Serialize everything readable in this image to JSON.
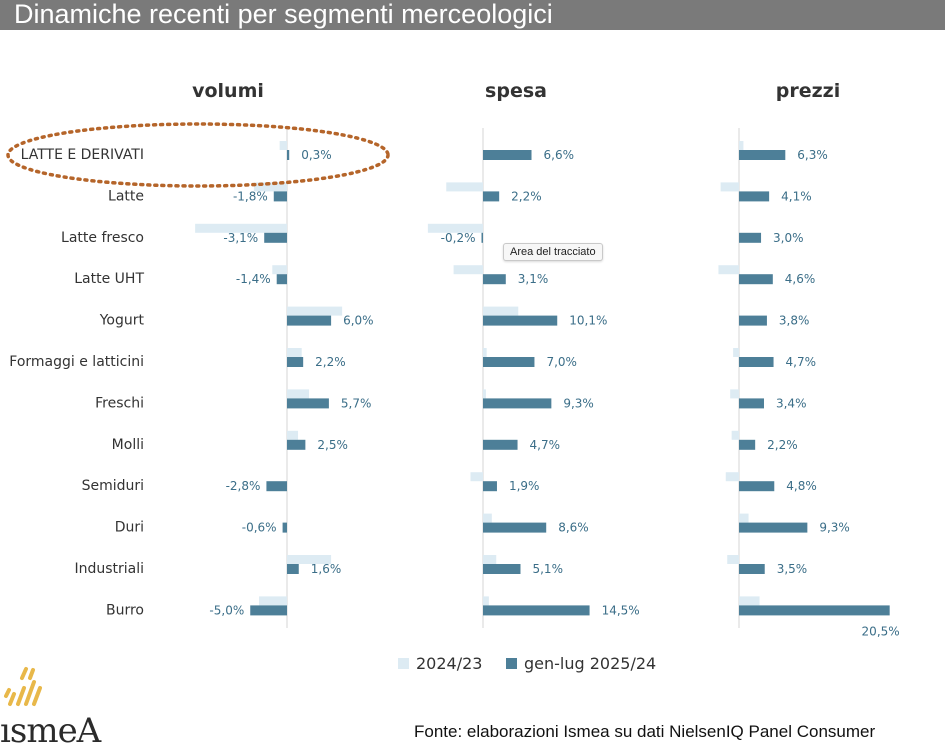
{
  "page_title": "Dinamiche recenti per segmenti merceologici",
  "source_note": "Fonte: elaborazioni Ismea su dati NielsenIQ Panel Consumer",
  "tooltip": "Area del tracciato",
  "logo_text": "ismeA",
  "colors": {
    "series_2024": "#ddebf3",
    "series_2025": "#4d7f98",
    "label_text": "#3b6e88",
    "category_text": "#333333",
    "highlight_ellipse": "#b5652a",
    "logo_gold": "#e8b84a",
    "logo_text": "#2b2b2b"
  },
  "chart_data": {
    "type": "bar",
    "orientation": "horizontal",
    "categories": [
      "LATTE E DERIVATI",
      "Latte",
      "Latte fresco",
      "Latte UHT",
      "Yogurt",
      "Formaggi e latticini",
      "Freschi",
      "Molli",
      "Semiduri",
      "Duri",
      "Industriali",
      "Burro"
    ],
    "highlighted_category": "LATTE E DERIVATI",
    "legend": [
      "2024/23",
      "gen-lug 2025/24"
    ],
    "legend_position": "bottom",
    "panels": [
      {
        "title": "volumi",
        "series": [
          {
            "name": "2024/23",
            "values": [
              -1.0,
              -4.5,
              -12.5,
              -2.0,
              7.5,
              2.0,
              3.0,
              1.5,
              0,
              0,
              6.0,
              -3.8
            ]
          },
          {
            "name": "gen-lug 2025/24",
            "values": [
              0.3,
              -1.8,
              -3.1,
              -1.4,
              6.0,
              2.2,
              5.7,
              2.5,
              -2.8,
              -0.6,
              1.6,
              -5.0
            ]
          }
        ],
        "labels": [
          "0,3%",
          "-1,8%",
          "-3,1%",
          "-1,4%",
          "6,0%",
          "2,2%",
          "5,7%",
          "2,5%",
          "-2,8%",
          "-0,6%",
          "1,6%",
          "-5,0%"
        ]
      },
      {
        "title": "spesa",
        "series": [
          {
            "name": "2024/23",
            "values": [
              0,
              -5.0,
              -7.5,
              -4.0,
              4.8,
              0.5,
              0.4,
              0,
              -1.7,
              1.2,
              1.8,
              0.8
            ]
          },
          {
            "name": "gen-lug 2025/24",
            "values": [
              6.6,
              2.2,
              -0.2,
              3.1,
              10.1,
              7.0,
              9.3,
              4.7,
              1.9,
              8.6,
              5.1,
              14.5
            ]
          }
        ],
        "labels": [
          "6,6%",
          "2,2%",
          "-0,2%",
          "3,1%",
          "10,1%",
          "7,0%",
          "9,3%",
          "4,7%",
          "1,9%",
          "8,6%",
          "5,1%",
          "14,5%"
        ]
      },
      {
        "title": "prezzi",
        "series": [
          {
            "name": "2024/23",
            "values": [
              0.6,
              -2.5,
              0,
              -2.8,
              0,
              -0.8,
              -1.2,
              -1.0,
              -1.8,
              1.3,
              -1.6,
              2.8
            ]
          },
          {
            "name": "gen-lug 2025/24",
            "values": [
              6.3,
              4.1,
              3.0,
              4.6,
              3.8,
              4.7,
              3.4,
              2.2,
              4.8,
              9.3,
              3.5,
              20.5
            ]
          }
        ],
        "labels": [
          "6,3%",
          "4,1%",
          "3,0%",
          "4,6%",
          "3,8%",
          "4,7%",
          "3,4%",
          "2,2%",
          "4,8%",
          "9,3%",
          "3,5%",
          "20,5%"
        ]
      }
    ]
  }
}
